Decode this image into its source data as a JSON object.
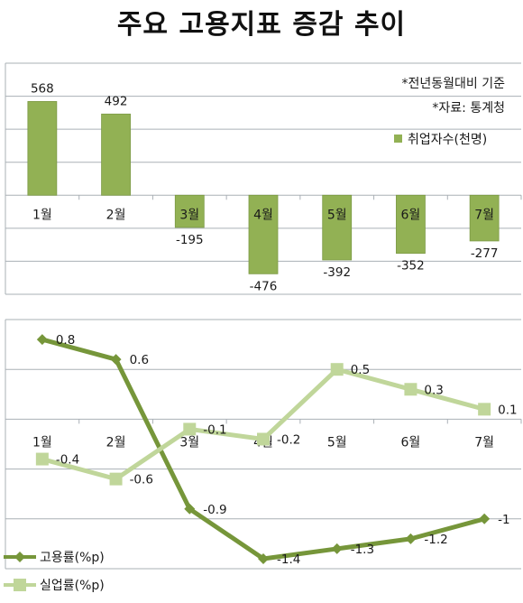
{
  "title": "주요 고용지표 증감 추이",
  "colors": {
    "bar": "#92b154",
    "bar_stroke": "#7c9a45",
    "employment": "#76963a",
    "unemployment": "#c0d69a",
    "grid": "#aab0b6",
    "text": "#1a1a1a"
  },
  "chart_data": [
    {
      "type": "bar",
      "notes": [
        "*전년동월대비 기준",
        "*자료: 통계청"
      ],
      "categories": [
        "1월",
        "2월",
        "3월",
        "4월",
        "5월",
        "6월",
        "7월"
      ],
      "series": [
        {
          "name": "취업자수(천명)",
          "values": [
            568,
            492,
            -195,
            -476,
            -392,
            -352,
            -277
          ]
        }
      ],
      "data_labels": [
        "568",
        "492",
        "-195",
        "-476",
        "-392",
        "-352",
        "-277"
      ],
      "ylim": [
        -600,
        800
      ],
      "grid": true,
      "legend": "top-right"
    },
    {
      "type": "line",
      "categories": [
        "1월",
        "2월",
        "3월",
        "4월",
        "5월",
        "6월",
        "7월"
      ],
      "series": [
        {
          "name": "고용률(%p)",
          "marker": "diamond",
          "values": [
            0.8,
            0.6,
            -0.9,
            -1.4,
            -1.3,
            -1.2,
            -1
          ],
          "labels": [
            "0.8",
            "0.6",
            "-0.9",
            "-1.4",
            "-1.3",
            "-1.2",
            "-1"
          ]
        },
        {
          "name": "실업률(%p)",
          "marker": "square",
          "values": [
            -0.4,
            -0.6,
            -0.1,
            -0.2,
            0.5,
            0.3,
            0.1
          ],
          "labels": [
            "-0.4",
            "-0.6",
            "-0.1",
            "-0.2",
            "0.5",
            "0.3",
            "0.1"
          ]
        }
      ],
      "ylim": [
        -1.5,
        1
      ],
      "grid": true,
      "legend": "bottom-left"
    }
  ]
}
